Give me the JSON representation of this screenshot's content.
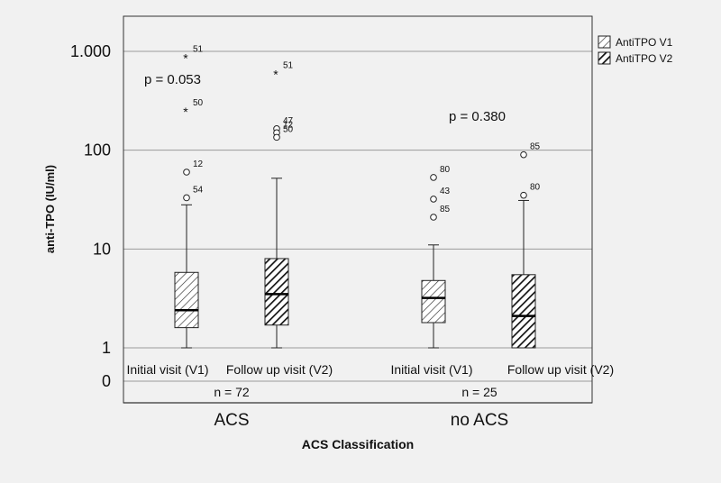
{
  "chart_data": {
    "type": "boxplot",
    "xlabel": "ACS Classification",
    "ylabel": "anti-TPO (IU/ml)",
    "yscale": "log",
    "yticks": [
      {
        "label": "1.000",
        "value": 1000
      },
      {
        "label": "100",
        "value": 100
      },
      {
        "label": "10",
        "value": 10
      },
      {
        "label": "1",
        "value": 1
      },
      {
        "label": "0",
        "value": 0
      }
    ],
    "grid": true,
    "legend_position": "top-right",
    "series": [
      {
        "name": "AntiTPO V1",
        "hatch": "light"
      },
      {
        "name": "AntiTPO V2",
        "hatch": "dark"
      }
    ],
    "groups": [
      {
        "name": "ACS",
        "n_label": "n = 72",
        "p_label": "p = 0.053",
        "boxes": [
          {
            "series": "AntiTPO V1",
            "label": "Initial visit (V1)",
            "min": 1,
            "q1": 1.6,
            "median": 2.4,
            "q3": 5.8,
            "max": 28,
            "outliers": [
              {
                "id": "51",
                "value": 870,
                "marker": "star"
              },
              {
                "id": "50",
                "value": 250,
                "marker": "star"
              },
              {
                "id": "12",
                "value": 60,
                "marker": "circle"
              },
              {
                "id": "54",
                "value": 33,
                "marker": "circle"
              }
            ]
          },
          {
            "series": "AntiTPO V2",
            "label": "Follow up visit (V2)",
            "min": 1,
            "q1": 1.7,
            "median": 3.5,
            "q3": 8,
            "max": 52,
            "outliers": [
              {
                "id": "51",
                "value": 600,
                "marker": "star"
              },
              {
                "id": "47",
                "value": 165,
                "marker": "circle"
              },
              {
                "id": "12",
                "value": 150,
                "marker": "circle"
              },
              {
                "id": "50",
                "value": 135,
                "marker": "circle"
              }
            ]
          }
        ]
      },
      {
        "name": "no ACS",
        "n_label": "n = 25",
        "p_label": "p = 0.380",
        "boxes": [
          {
            "series": "AntiTPO V1",
            "label": "Initial visit (V1)",
            "min": 1,
            "q1": 1.8,
            "median": 3.2,
            "q3": 4.8,
            "max": 11,
            "outliers": [
              {
                "id": "80",
                "value": 53,
                "marker": "circle"
              },
              {
                "id": "43",
                "value": 32,
                "marker": "circle"
              },
              {
                "id": "85",
                "value": 21,
                "marker": "circle"
              }
            ]
          },
          {
            "series": "AntiTPO V2",
            "label": "Follow up visit (V2)",
            "min": 1,
            "q1": 1,
            "median": 2.1,
            "q3": 5.5,
            "max": 31,
            "outliers": [
              {
                "id": "85",
                "value": 90,
                "marker": "circle"
              },
              {
                "id": "80",
                "value": 35,
                "marker": "circle"
              }
            ]
          }
        ]
      }
    ]
  }
}
